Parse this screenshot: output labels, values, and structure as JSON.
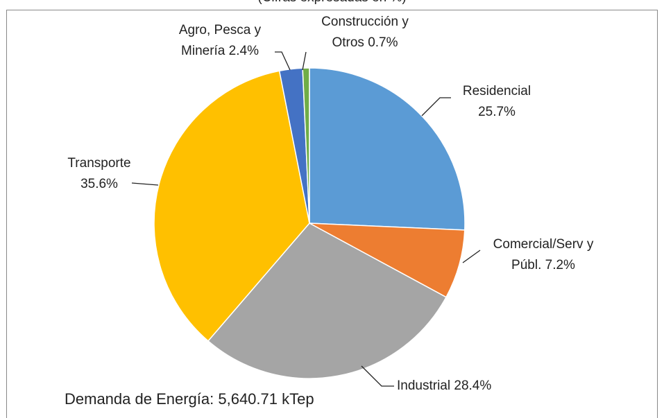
{
  "chart_data": {
    "type": "pie",
    "subtitle": "(Cifras expresadas en %)",
    "categories": [
      "Residencial",
      "Comercial/Serv y Públ.",
      "Industrial",
      "Transporte",
      "Agro, Pesca y Minería",
      "Construcción y Otros"
    ],
    "values": [
      25.7,
      7.2,
      28.4,
      35.6,
      2.4,
      0.7
    ],
    "value_labels": [
      "25.7%",
      "7.2%",
      "28.4%",
      "35.6%",
      "2.4%",
      "0.7%"
    ],
    "colors": [
      "#5b9bd5",
      "#ed7d31",
      "#a5a5a5",
      "#ffc000",
      "#4472c4",
      "#70ad47"
    ],
    "annotation": "Demanda de Energía: 5,640.71 kTep"
  }
}
